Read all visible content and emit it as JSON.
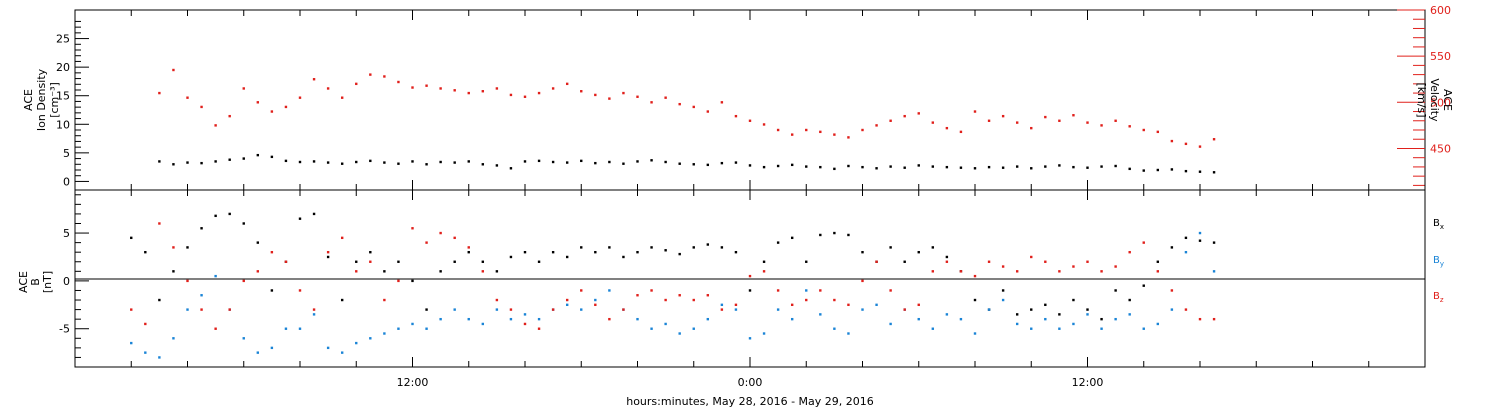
{
  "chart_data": [
    {
      "type": "scatter",
      "panel": "top",
      "ylabel_lines": [
        "ACE",
        "Ion Density",
        "[cm⁻³]"
      ],
      "ylim": [
        -1.5,
        30
      ],
      "yticks": [
        0,
        5,
        10,
        15,
        20,
        25
      ],
      "y2label_lines": [
        "ACE",
        "Velocity",
        "[km/s]"
      ],
      "y2lim": [
        405,
        600
      ],
      "y2ticks": [
        450,
        500,
        550,
        600
      ],
      "series": [
        {
          "name": "",
          "axis": "left",
          "color": "#000000",
          "x": [
            3.0,
            3.5,
            4.0,
            4.5,
            5.0,
            5.5,
            6.0,
            6.5,
            7.0,
            7.5,
            8.0,
            8.5,
            9.0,
            9.5,
            10.0,
            10.5,
            11.0,
            11.5,
            12.0,
            12.5,
            13.0,
            13.5,
            14.0,
            14.5,
            15.0,
            15.5,
            16.0,
            16.5,
            17.0,
            17.5,
            18.0,
            18.5,
            19.0,
            19.5,
            20.0,
            20.5,
            21.0,
            21.5,
            22.0,
            22.5,
            23.0,
            23.5,
            24.0,
            24.5,
            25.0,
            25.5,
            26.0,
            26.5,
            27.0,
            27.5,
            28.0,
            28.5,
            29.0,
            29.5,
            30.0,
            30.5,
            31.0,
            31.5,
            32.0,
            32.5,
            33.0,
            33.5,
            34.0,
            34.5,
            35.0,
            35.5,
            36.0,
            36.5,
            37.0,
            37.5,
            38.0,
            38.5,
            39.0,
            39.5,
            40.0,
            40.5
          ],
          "y": [
            3.5,
            3.0,
            3.3,
            3.2,
            3.5,
            3.8,
            4.0,
            4.6,
            4.3,
            3.6,
            3.4,
            3.5,
            3.3,
            3.1,
            3.4,
            3.6,
            3.3,
            3.1,
            3.5,
            3.0,
            3.4,
            3.3,
            3.5,
            3.0,
            2.8,
            2.3,
            3.5,
            3.6,
            3.4,
            3.3,
            3.6,
            3.2,
            3.4,
            3.1,
            3.5,
            3.7,
            3.4,
            3.1,
            3.0,
            2.9,
            3.2,
            3.3,
            2.8,
            2.5,
            2.7,
            2.9,
            2.6,
            2.5,
            2.2,
            2.7,
            2.5,
            2.3,
            2.6,
            2.4,
            2.8,
            2.6,
            2.5,
            2.4,
            2.3,
            2.5,
            2.4,
            2.6,
            2.3,
            2.6,
            2.8,
            2.5,
            2.4,
            2.6,
            2.7,
            2.2,
            1.9,
            2.0,
            2.1,
            1.8,
            1.7,
            1.6
          ]
        },
        {
          "name": "",
          "axis": "right",
          "color": "#e0201b",
          "x": [
            3.0,
            3.5,
            4.0,
            4.5,
            5.0,
            5.5,
            6.0,
            6.5,
            7.0,
            7.5,
            8.0,
            8.5,
            9.0,
            9.5,
            10.0,
            10.5,
            11.0,
            11.5,
            12.0,
            12.5,
            13.0,
            13.5,
            14.0,
            14.5,
            15.0,
            15.5,
            16.0,
            16.5,
            17.0,
            17.5,
            18.0,
            18.5,
            19.0,
            19.5,
            20.0,
            20.5,
            21.0,
            21.5,
            22.0,
            22.5,
            23.0,
            23.5,
            24.0,
            24.5,
            25.0,
            25.5,
            26.0,
            26.5,
            27.0,
            27.5,
            28.0,
            28.5,
            29.0,
            29.5,
            30.0,
            30.5,
            31.0,
            31.5,
            32.0,
            32.5,
            33.0,
            33.5,
            34.0,
            34.5,
            35.0,
            35.5,
            36.0,
            36.5,
            37.0,
            37.5,
            38.0,
            38.5,
            39.0,
            39.5,
            40.0,
            40.5
          ],
          "y": [
            510,
            535,
            505,
            495,
            475,
            485,
            515,
            500,
            490,
            495,
            505,
            525,
            515,
            505,
            520,
            530,
            528,
            522,
            516,
            518,
            515,
            513,
            510,
            512,
            515,
            508,
            506,
            510,
            515,
            520,
            512,
            508,
            504,
            510,
            506,
            500,
            505,
            498,
            495,
            490,
            500,
            485,
            480,
            476,
            470,
            465,
            470,
            468,
            465,
            462,
            470,
            475,
            480,
            485,
            488,
            478,
            472,
            468,
            490,
            480,
            485,
            478,
            472,
            484,
            480,
            486,
            478,
            475,
            480,
            474,
            470,
            468,
            458,
            455,
            452,
            460
          ]
        }
      ]
    },
    {
      "type": "scatter",
      "panel": "bottom",
      "ylabel_lines": [
        "ACE",
        "B",
        "[nT]"
      ],
      "ylim": [
        -9,
        9.5
      ],
      "yticks": [
        -5,
        0,
        5
      ],
      "series": [
        {
          "name": "Bx",
          "color": "#000000",
          "x": [
            2.0,
            2.5,
            3.0,
            3.5,
            4.0,
            4.5,
            5.0,
            5.5,
            6.0,
            6.5,
            7.0,
            7.5,
            8.0,
            8.5,
            9.0,
            9.5,
            10.0,
            10.5,
            11.0,
            11.5,
            12.0,
            12.5,
            13.0,
            13.5,
            14.0,
            14.5,
            15.0,
            15.5,
            16.0,
            16.5,
            17.0,
            17.5,
            18.0,
            18.5,
            19.0,
            19.5,
            20.0,
            20.5,
            21.0,
            21.5,
            22.0,
            22.5,
            23.0,
            23.5,
            24.0,
            24.5,
            25.0,
            25.5,
            26.0,
            26.5,
            27.0,
            27.5,
            28.0,
            28.5,
            29.0,
            29.5,
            30.0,
            30.5,
            31.0,
            31.5,
            32.0,
            32.5,
            33.0,
            33.5,
            34.0,
            34.5,
            35.0,
            35.5,
            36.0,
            36.5,
            37.0,
            37.5,
            38.0,
            38.5,
            39.0,
            39.5,
            40.0,
            40.5
          ],
          "y": [
            4.5,
            3.0,
            -2.0,
            1.0,
            3.5,
            5.5,
            6.8,
            7.0,
            6.0,
            4.0,
            -1.0,
            2.0,
            6.5,
            7.0,
            2.5,
            -2.0,
            2.0,
            3.0,
            1.0,
            2.0,
            0.0,
            -3.0,
            1.0,
            2.0,
            3.0,
            2.0,
            1.0,
            2.5,
            3.0,
            2.0,
            3.0,
            2.5,
            3.5,
            3.0,
            3.5,
            2.5,
            3.0,
            3.5,
            3.2,
            2.8,
            3.5,
            3.8,
            3.5,
            3.0,
            -1.0,
            2.0,
            4.0,
            4.5,
            2.0,
            4.8,
            5.0,
            4.8,
            3.0,
            2.0,
            3.5,
            2.0,
            3.0,
            3.5,
            2.5,
            1.0,
            -2.0,
            -3.0,
            -1.0,
            -3.5,
            -3.0,
            -2.5,
            -3.5,
            -2.0,
            -3.0,
            -4.0,
            -1.0,
            -2.0,
            -0.5,
            2.0,
            3.5,
            4.5,
            4.2,
            4.0
          ]
        },
        {
          "name": "By",
          "color": "#1a84d6",
          "x": [
            2.0,
            2.5,
            3.0,
            3.5,
            4.0,
            4.5,
            5.0,
            5.5,
            6.0,
            6.5,
            7.0,
            7.5,
            8.0,
            8.5,
            9.0,
            9.5,
            10.0,
            10.5,
            11.0,
            11.5,
            12.0,
            12.5,
            13.0,
            13.5,
            14.0,
            14.5,
            15.0,
            15.5,
            16.0,
            16.5,
            17.0,
            17.5,
            18.0,
            18.5,
            19.0,
            19.5,
            20.0,
            20.5,
            21.0,
            21.5,
            22.0,
            22.5,
            23.0,
            23.5,
            24.0,
            24.5,
            25.0,
            25.5,
            26.0,
            26.5,
            27.0,
            27.5,
            28.0,
            28.5,
            29.0,
            29.5,
            30.0,
            30.5,
            31.0,
            31.5,
            32.0,
            32.5,
            33.0,
            33.5,
            34.0,
            34.5,
            35.0,
            35.5,
            36.0,
            36.5,
            37.0,
            37.5,
            38.0,
            38.5,
            39.0,
            39.5,
            40.0,
            40.5
          ],
          "y": [
            -6.5,
            -7.5,
            -8.0,
            -6.0,
            -3.0,
            -1.5,
            0.5,
            -3.0,
            -6.0,
            -7.5,
            -7.0,
            -5.0,
            -5.0,
            -3.5,
            -7.0,
            -7.5,
            -6.5,
            -6.0,
            -5.5,
            -5.0,
            -4.5,
            -5.0,
            -4.0,
            -3.0,
            -4.0,
            -4.5,
            -3.0,
            -4.0,
            -3.5,
            -4.0,
            -3.0,
            -2.5,
            -3.0,
            -2.0,
            -1.0,
            -3.0,
            -4.0,
            -5.0,
            -4.5,
            -5.5,
            -5.0,
            -4.0,
            -2.5,
            -3.0,
            -6.0,
            -5.5,
            -3.0,
            -4.0,
            -1.0,
            -3.5,
            -5.0,
            -5.5,
            -3.0,
            -2.5,
            -4.5,
            -3.0,
            -4.0,
            -5.0,
            -3.5,
            -4.0,
            -5.5,
            -3.0,
            -2.0,
            -4.5,
            -5.0,
            -4.0,
            -5.0,
            -4.5,
            -3.5,
            -5.0,
            -4.0,
            -3.5,
            -5.0,
            -4.5,
            -3.0,
            3.0,
            5.0,
            1.0
          ]
        },
        {
          "name": "Bz",
          "color": "#e0201b",
          "x": [
            2.0,
            2.5,
            3.0,
            3.5,
            4.0,
            4.5,
            5.0,
            5.5,
            6.0,
            6.5,
            7.0,
            7.5,
            8.0,
            8.5,
            9.0,
            9.5,
            10.0,
            10.5,
            11.0,
            11.5,
            12.0,
            12.5,
            13.0,
            13.5,
            14.0,
            14.5,
            15.0,
            15.5,
            16.0,
            16.5,
            17.0,
            17.5,
            18.0,
            18.5,
            19.0,
            19.5,
            20.0,
            20.5,
            21.0,
            21.5,
            22.0,
            22.5,
            23.0,
            23.5,
            24.0,
            24.5,
            25.0,
            25.5,
            26.0,
            26.5,
            27.0,
            27.5,
            28.0,
            28.5,
            29.0,
            29.5,
            30.0,
            30.5,
            31.0,
            31.5,
            32.0,
            32.5,
            33.0,
            33.5,
            34.0,
            34.5,
            35.0,
            35.5,
            36.0,
            36.5,
            37.0,
            37.5,
            38.0,
            38.5,
            39.0,
            39.5,
            40.0,
            40.5
          ],
          "y": [
            -3.0,
            -4.5,
            6.0,
            3.5,
            0.0,
            -3.0,
            -5.0,
            -3.0,
            0.0,
            1.0,
            3.0,
            2.0,
            -1.0,
            -3.0,
            3.0,
            4.5,
            1.0,
            2.0,
            -2.0,
            0.0,
            5.5,
            4.0,
            5.0,
            4.5,
            3.5,
            1.0,
            -2.0,
            -3.0,
            -4.5,
            -5.0,
            -3.0,
            -2.0,
            -1.0,
            -2.5,
            -4.0,
            -3.0,
            -1.5,
            -1.0,
            -2.0,
            -1.5,
            -2.0,
            -1.5,
            -3.0,
            -2.5,
            0.5,
            1.0,
            -1.0,
            -2.5,
            -2.0,
            -1.0,
            -2.0,
            -2.5,
            0.0,
            2.0,
            -1.0,
            -3.0,
            -2.5,
            1.0,
            2.0,
            1.0,
            0.5,
            2.0,
            1.5,
            1.0,
            2.5,
            2.0,
            1.0,
            1.5,
            2.0,
            1.0,
            1.5,
            3.0,
            4.0,
            1.0,
            -1.0,
            -3.0,
            -4.0,
            -4.0
          ]
        }
      ]
    }
  ],
  "x_axis": {
    "label": "hours:minutes, May 28, 2016 - May 29, 2016",
    "xlim": [
      0,
      48
    ],
    "major_ticks": [
      {
        "x": 12,
        "label": "12:00"
      },
      {
        "x": 24,
        "label": "0:00"
      },
      {
        "x": 36,
        "label": "12:00"
      }
    ],
    "minor_step_hours": 2
  },
  "legend": [
    "B",
    "B",
    "B"
  ],
  "legend_subscripts": [
    "x",
    "y",
    "z"
  ],
  "colors": {
    "black": "#000000",
    "red": "#e0201b",
    "blue": "#1a84d6"
  }
}
